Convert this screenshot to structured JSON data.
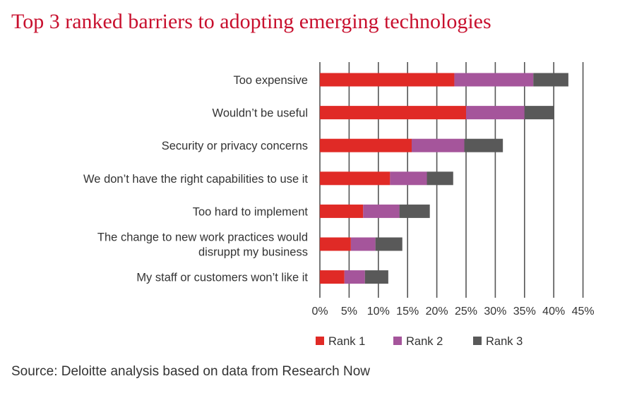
{
  "title": "Top 3 ranked barriers to adopting emerging technologies",
  "source": "Source: Deloitte analysis based on data from Research Now",
  "chart_data": {
    "type": "bar",
    "orientation": "horizontal",
    "stacked": true,
    "title": "Top 3 ranked barriers to adopting emerging technologies",
    "xlabel": "",
    "ylabel": "",
    "xlim": [
      0,
      45
    ],
    "ticks": [
      "0%",
      "5%",
      "10%",
      "15%",
      "20%",
      "25%",
      "30%",
      "35%",
      "40%",
      "45%"
    ],
    "grid": "vertical",
    "legend_position": "bottom",
    "categories": [
      [
        "Too expensive"
      ],
      [
        "Wouldn’t be useful"
      ],
      [
        "Security or privacy concerns"
      ],
      [
        "We don’t have the right capabilities to use it"
      ],
      [
        "Too hard to implement"
      ],
      [
        "The change to new work practices would",
        "disruppt my business"
      ],
      [
        "My staff or customers won’t like it"
      ]
    ],
    "series": [
      {
        "name": "Rank 1",
        "color": "#e02a26",
        "values": [
          23,
          25,
          15.7,
          12,
          7.4,
          5.3,
          4.2
        ]
      },
      {
        "name": "Rank 2",
        "color": "#a5559b",
        "values": [
          13.5,
          10,
          9,
          6.3,
          6.2,
          4.2,
          3.5
        ]
      },
      {
        "name": "Rank 3",
        "color": "#595959",
        "values": [
          6,
          5,
          6.6,
          4.5,
          5.2,
          4.6,
          4
        ]
      }
    ]
  }
}
